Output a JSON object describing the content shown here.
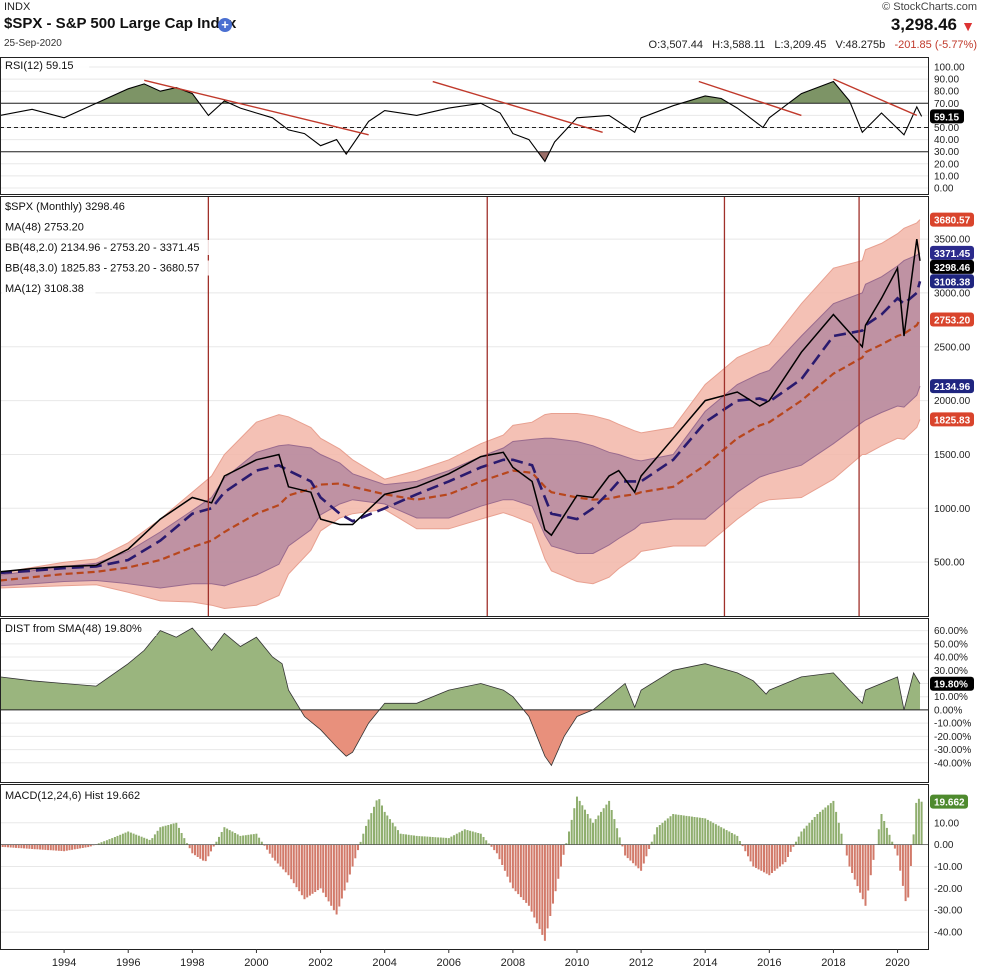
{
  "header": {
    "exchange": "INDX",
    "title": "$SPX - S&P 500 Large Cap Index",
    "date": "25-Sep-2020",
    "copyright": "© StockCharts.com",
    "last_price": "3,298.46",
    "open_label": "O:",
    "open": "3,507.44",
    "high_label": "H:",
    "high": "3,588.11",
    "low_label": "L:",
    "low": "3,209.45",
    "volume_label": "V:",
    "volume": "48.275b",
    "change": "-201.85 (-5.77%)",
    "plus_glyph": "+",
    "down_glyph": "▼"
  },
  "chart_data": [
    {
      "type": "line",
      "name": "rsi",
      "legend": "RSI(12) 59.15",
      "current_label": "59.15",
      "ylim": [
        0,
        100
      ],
      "ticks": [
        "100.00",
        "90.00",
        "80.00",
        "70.00",
        "60.00",
        "50.00",
        "40.00",
        "30.00",
        "20.00",
        "10.00",
        "0.00"
      ],
      "levels": [
        70,
        50,
        30
      ],
      "x": [
        1992,
        1993,
        1994,
        1995,
        1996,
        1996.5,
        1997,
        1997.5,
        1998,
        1998.5,
        1999,
        1999.5,
        2000,
        2000.5,
        2001,
        2001.5,
        2002,
        2002.5,
        2002.8,
        2003.5,
        2004,
        2005,
        2006,
        2007,
        2007.6,
        2008,
        2008.5,
        2009,
        2009.3,
        2010,
        2011,
        2011.8,
        2012,
        2013,
        2014,
        2014.5,
        2015,
        2015.8,
        2016,
        2017,
        2018,
        2018.5,
        2018.9,
        2019.5,
        2020.2,
        2020.6,
        2020.75
      ],
      "values": [
        60,
        65,
        58,
        70,
        82,
        86,
        80,
        83,
        78,
        60,
        72,
        66,
        62,
        58,
        48,
        45,
        35,
        40,
        28,
        55,
        64,
        60,
        66,
        70,
        62,
        45,
        40,
        22,
        38,
        58,
        60,
        46,
        58,
        68,
        76,
        74,
        66,
        50,
        58,
        78,
        88,
        72,
        46,
        62,
        44,
        67,
        59.15
      ],
      "trendlines": [
        [
          1996.5,
          89,
          2003.5,
          44
        ],
        [
          2005.5,
          88,
          2010.8,
          46
        ],
        [
          2013.8,
          88,
          2017,
          60
        ],
        [
          2018,
          90,
          2020.6,
          60
        ]
      ]
    },
    {
      "type": "line",
      "name": "price",
      "legend": [
        "$SPX (Monthly) 3298.46",
        "MA(48) 2753.20",
        "BB(48,2.0) 2134.96 - 2753.20 - 3371.45",
        "BB(48,3.0) 1825.83 - 2753.20 - 3680.57",
        "MA(12) 3108.38"
      ],
      "ylim": [
        0,
        3900
      ],
      "ticks": [
        "3500.00",
        "3000.00",
        "2500.00",
        "2000.00",
        "1500.00",
        "1000.00",
        "500.00"
      ],
      "right_labels": [
        {
          "text": "3680.57",
          "value": 3680.57,
          "color": "#d9442c"
        },
        {
          "text": "3371.45",
          "value": 3371.45,
          "color": "#2b2a8c"
        },
        {
          "text": "3298.46",
          "value": 3298.46,
          "color": "#000000"
        },
        {
          "text": "3108.38",
          "value": 3108.38,
          "color": "#1f2580"
        },
        {
          "text": "2753.20",
          "value": 2753.2,
          "color": "#d9442c"
        },
        {
          "text": "2134.96",
          "value": 2134.96,
          "color": "#1f2580"
        },
        {
          "text": "1825.83",
          "value": 1825.83,
          "color": "#d9442c"
        }
      ],
      "vlines": [
        1998.5,
        2007.2,
        2014.6,
        2018.8
      ],
      "x": [
        1992,
        1993,
        1994,
        1995,
        1996,
        1997,
        1998,
        1998.6,
        1999,
        2000,
        2000.7,
        2001,
        2001.7,
        2002,
        2002.6,
        2003,
        2004,
        2005,
        2006,
        2007,
        2007.7,
        2008,
        2008.6,
        2009,
        2009.2,
        2010,
        2010.5,
        2011,
        2011.3,
        2011.8,
        2012,
        2013,
        2014,
        2015,
        2015.7,
        2016,
        2017,
        2018,
        2018.9,
        2019,
        2019.5,
        2020,
        2020.2,
        2020.6,
        2020.7
      ],
      "close": [
        410,
        440,
        460,
        470,
        620,
        900,
        1100,
        1050,
        1300,
        1450,
        1500,
        1200,
        1150,
        900,
        850,
        850,
        1130,
        1200,
        1320,
        1480,
        1520,
        1380,
        1250,
        800,
        750,
        1120,
        1100,
        1300,
        1350,
        1150,
        1300,
        1650,
        2000,
        2080,
        1950,
        2000,
        2450,
        2800,
        2500,
        2700,
        2950,
        3230,
        2600,
        3500,
        3298.46
      ],
      "ma12": [
        400,
        420,
        445,
        460,
        520,
        700,
        950,
        1000,
        1150,
        1350,
        1400,
        1350,
        1250,
        1100,
        950,
        880,
        1000,
        1130,
        1250,
        1380,
        1450,
        1450,
        1400,
        1100,
        950,
        900,
        1000,
        1150,
        1250,
        1250,
        1250,
        1450,
        1800,
        2000,
        2020,
        1990,
        2200,
        2600,
        2650,
        2700,
        2800,
        2950,
        2900,
        3000,
        3108.38
      ],
      "ma48": [
        330,
        360,
        390,
        410,
        450,
        520,
        640,
        700,
        780,
        950,
        1030,
        1120,
        1180,
        1220,
        1230,
        1200,
        1130,
        1080,
        1130,
        1250,
        1320,
        1350,
        1330,
        1200,
        1150,
        1100,
        1080,
        1090,
        1110,
        1130,
        1150,
        1200,
        1400,
        1650,
        1770,
        1800,
        2000,
        2250,
        2400,
        2450,
        2520,
        2600,
        2620,
        2700,
        2753.2
      ],
      "bb2_upper": [
        380,
        420,
        460,
        490,
        600,
        780,
        980,
        1100,
        1280,
        1520,
        1580,
        1590,
        1560,
        1500,
        1420,
        1320,
        1220,
        1250,
        1350,
        1480,
        1560,
        1620,
        1640,
        1650,
        1650,
        1620,
        1580,
        1520,
        1500,
        1450,
        1440,
        1500,
        1900,
        2150,
        2250,
        2280,
        2600,
        2900,
        3000,
        3080,
        3150,
        3250,
        3300,
        3350,
        3371.45
      ],
      "bb2_lower": [
        280,
        300,
        320,
        330,
        300,
        260,
        300,
        300,
        280,
        380,
        480,
        650,
        800,
        940,
        1040,
        1080,
        1040,
        910,
        910,
        1020,
        1080,
        1080,
        1020,
        750,
        650,
        580,
        580,
        660,
        720,
        810,
        860,
        900,
        900,
        1150,
        1290,
        1320,
        1400,
        1600,
        1800,
        1820,
        1890,
        1950,
        1940,
        2050,
        2134.96
      ],
      "bb3_upper": [
        400,
        450,
        500,
        530,
        680,
        900,
        1150,
        1300,
        1500,
        1800,
        1870,
        1850,
        1750,
        1650,
        1550,
        1450,
        1270,
        1350,
        1450,
        1600,
        1680,
        1770,
        1800,
        1870,
        1880,
        1880,
        1860,
        1820,
        1780,
        1720,
        1700,
        1750,
        2150,
        2400,
        2490,
        2520,
        2900,
        3230,
        3300,
        3400,
        3460,
        3550,
        3600,
        3650,
        3680.57
      ],
      "bb3_lower": [
        260,
        270,
        280,
        290,
        220,
        140,
        130,
        100,
        70,
        100,
        190,
        390,
        610,
        790,
        910,
        950,
        990,
        810,
        810,
        900,
        960,
        930,
        860,
        530,
        420,
        320,
        300,
        360,
        440,
        540,
        600,
        650,
        650,
        900,
        1050,
        1080,
        1100,
        1270,
        1500,
        1500,
        1580,
        1650,
        1640,
        1750,
        1825.83
      ]
    },
    {
      "type": "area",
      "name": "dist",
      "legend": "DIST from SMA(48) 19.80%",
      "current_label": "19.80%",
      "ylim": [
        -50,
        65
      ],
      "ticks": [
        "60.00%",
        "50.00%",
        "40.00%",
        "30.00%",
        "20.00%",
        "10.00%",
        "0.00%",
        "-10.00%",
        "-20.00%",
        "-30.00%",
        "-40.00%"
      ],
      "x": [
        1992,
        1993,
        1994,
        1995,
        1996,
        1996.5,
        1997,
        1997.5,
        1998,
        1998.6,
        1999,
        1999.5,
        2000,
        2000.5,
        2000.8,
        2001,
        2001.5,
        2002,
        2002.5,
        2002.8,
        2003,
        2003.5,
        2004,
        2005,
        2006,
        2007,
        2007.7,
        2008,
        2008.5,
        2009,
        2009.2,
        2009.6,
        2010,
        2010.5,
        2011,
        2011.5,
        2011.8,
        2012,
        2013,
        2014,
        2015,
        2015.5,
        2015.9,
        2016,
        2017,
        2018,
        2018.5,
        2018.9,
        2019,
        2019.5,
        2020,
        2020.2,
        2020.5,
        2020.7
      ],
      "values": [
        25,
        22,
        20,
        18,
        35,
        45,
        60,
        55,
        62,
        45,
        58,
        48,
        55,
        40,
        35,
        15,
        -5,
        -15,
        -28,
        -35,
        -32,
        -10,
        5,
        5,
        15,
        20,
        15,
        10,
        -5,
        -35,
        -42,
        -20,
        -5,
        0,
        10,
        20,
        2,
        15,
        30,
        35,
        28,
        22,
        12,
        15,
        25,
        28,
        15,
        5,
        15,
        20,
        25,
        0,
        28,
        19.8
      ]
    },
    {
      "type": "bar",
      "name": "macd_hist",
      "legend": "MACD(12,24,6) Hist 19.662",
      "current_label": "19.662",
      "ylim": [
        -45,
        25
      ],
      "ticks": [
        "10.00",
        "0.00",
        "-10.00",
        "-20.00",
        "-30.00",
        "-40.00"
      ],
      "x": [
        1992,
        1993,
        1994,
        1994.8,
        1995.5,
        1996,
        1996.7,
        1997,
        1997.5,
        1998,
        1998.4,
        1999,
        1999.5,
        2000,
        2000.5,
        2001,
        2001.5,
        2002,
        2002.5,
        2003,
        2003.4,
        2003.8,
        2004,
        2004.5,
        2005,
        2006,
        2006.5,
        2007,
        2007.5,
        2008,
        2008.5,
        2009,
        2009.5,
        2010,
        2010.5,
        2011,
        2011.5,
        2012,
        2012.5,
        2013,
        2014,
        2015,
        2015.5,
        2016,
        2016.5,
        2017,
        2017.5,
        2018,
        2018.5,
        2019,
        2019.5,
        2020,
        2020.3,
        2020.6,
        2020.75
      ],
      "values": [
        -1,
        -2,
        -3,
        -1,
        3,
        6,
        2,
        8,
        10,
        -4,
        -8,
        8,
        4,
        5,
        -6,
        -14,
        -25,
        -20,
        -32,
        -10,
        8,
        22,
        15,
        5,
        4,
        3,
        7,
        5,
        -4,
        -20,
        -28,
        -44,
        -10,
        22,
        10,
        20,
        -5,
        -12,
        8,
        14,
        12,
        4,
        -10,
        -14,
        -8,
        6,
        14,
        20,
        -10,
        -28,
        14,
        -5,
        -30,
        22,
        19.662
      ]
    }
  ],
  "x_axis": {
    "ticks": [
      "1994",
      "1996",
      "1998",
      "2000",
      "2002",
      "2004",
      "2006",
      "2008",
      "2010",
      "2012",
      "2014",
      "2016",
      "2018",
      "2020"
    ],
    "values": [
      1994,
      1996,
      1998,
      2000,
      2002,
      2004,
      2006,
      2008,
      2010,
      2012,
      2014,
      2016,
      2018,
      2020
    ]
  },
  "colors": {
    "price": "#000000",
    "ma12": "#2a1a6e",
    "ma48": "#b8461c",
    "bb3_fill": "#f2b6a8",
    "bb2_fill": "#b58aa0",
    "bb2_line": "#9a6b8e",
    "bb3_line": "#e8a090",
    "rsi_line": "#000000",
    "rsi_over": "#7d9466",
    "rsi_under": "#9a6e68",
    "trend": "#c0392b",
    "vline": "#a0312a",
    "dist_pos": "#9ab57e",
    "dist_neg": "#e8907c",
    "macd_pos": "#8fae6e",
    "macd_neg": "#d27a6a",
    "grid": "#e8e8e8"
  }
}
